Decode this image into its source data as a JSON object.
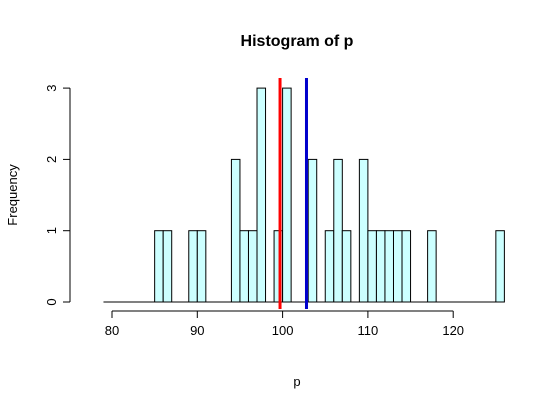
{
  "chart_data": {
    "type": "bar",
    "title": "Histogram of p",
    "xlabel": "p",
    "ylabel": "Frequency",
    "xlim": [
      78,
      127
    ],
    "ylim": [
      0,
      3
    ],
    "x_ticks": [
      80,
      90,
      100,
      110,
      120
    ],
    "y_ticks": [
      0,
      1,
      2,
      3
    ],
    "bin_width": 1,
    "bins": [
      {
        "start": 85,
        "end": 86,
        "count": 1
      },
      {
        "start": 86,
        "end": 87,
        "count": 1
      },
      {
        "start": 89,
        "end": 90,
        "count": 1
      },
      {
        "start": 90,
        "end": 91,
        "count": 1
      },
      {
        "start": 94,
        "end": 95,
        "count": 2
      },
      {
        "start": 95,
        "end": 96,
        "count": 1
      },
      {
        "start": 96,
        "end": 97,
        "count": 1
      },
      {
        "start": 97,
        "end": 98,
        "count": 3
      },
      {
        "start": 99,
        "end": 100,
        "count": 1
      },
      {
        "start": 100,
        "end": 101,
        "count": 3
      },
      {
        "start": 103,
        "end": 104,
        "count": 2
      },
      {
        "start": 105,
        "end": 106,
        "count": 1
      },
      {
        "start": 106,
        "end": 107,
        "count": 2
      },
      {
        "start": 107,
        "end": 108,
        "count": 1
      },
      {
        "start": 109,
        "end": 110,
        "count": 2
      },
      {
        "start": 110,
        "end": 111,
        "count": 1
      },
      {
        "start": 111,
        "end": 112,
        "count": 1
      },
      {
        "start": 112,
        "end": 113,
        "count": 1
      },
      {
        "start": 113,
        "end": 114,
        "count": 1
      },
      {
        "start": 114,
        "end": 115,
        "count": 1
      },
      {
        "start": 117,
        "end": 118,
        "count": 1
      },
      {
        "start": 125,
        "end": 126,
        "count": 1
      }
    ],
    "empty_range": [
      79,
      126
    ],
    "vlines": [
      {
        "x": 99.7,
        "color": "#ff0000"
      },
      {
        "x": 102.8,
        "color": "#0000cc"
      }
    ],
    "bar_fill": "#ccffff",
    "bar_stroke": "#000000",
    "grid": false,
    "legend": "none"
  }
}
